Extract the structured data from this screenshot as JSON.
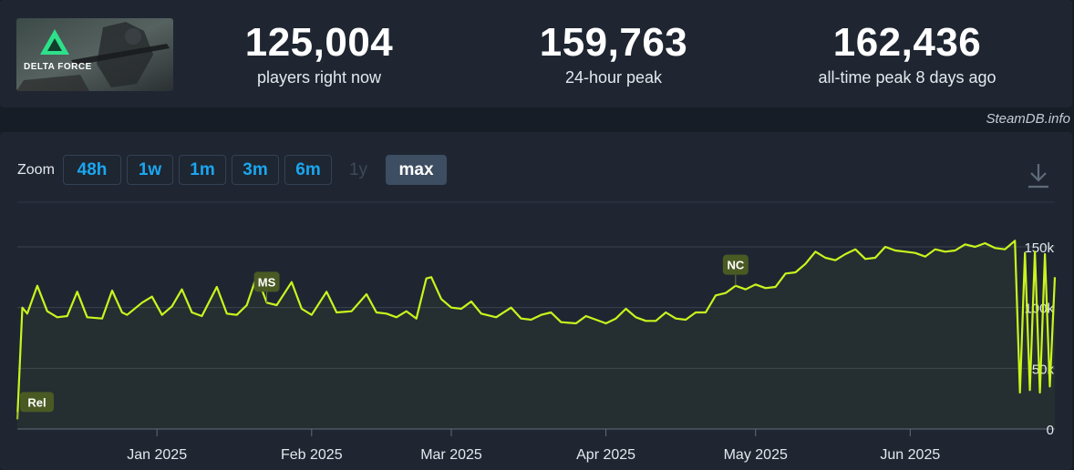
{
  "game": {
    "thumbnail_text": "DELTA FORCE",
    "thumbnail_icon": "delta-force-logo"
  },
  "stats": {
    "current": {
      "value": "125,004",
      "label": "players right now"
    },
    "peak24": {
      "value": "159,763",
      "label": "24-hour peak"
    },
    "alltime": {
      "value": "162,436",
      "label": "all-time peak 8 days ago"
    }
  },
  "credit": "SteamDB.info",
  "zoom": {
    "label": "Zoom",
    "buttons": [
      {
        "label": "48h",
        "state": "enabled"
      },
      {
        "label": "1w",
        "state": "enabled"
      },
      {
        "label": "1m",
        "state": "enabled"
      },
      {
        "label": "3m",
        "state": "enabled"
      },
      {
        "label": "6m",
        "state": "enabled"
      },
      {
        "label": "1y",
        "state": "disabled"
      },
      {
        "label": "max",
        "state": "active"
      }
    ]
  },
  "icons": {
    "download": "download-icon"
  },
  "colors": {
    "line": "#c8f51d",
    "annotation_bg": "#4a5a23",
    "active_zoom": "#3d4d62",
    "zoom_text": "#1ba6f0"
  },
  "chart_data": {
    "type": "line",
    "x_unit": "date",
    "xlim": [
      "2024-12-04",
      "2025-06-30"
    ],
    "ylim": [
      0,
      150000
    ],
    "y_ticks": [
      0,
      50000,
      100000,
      150000
    ],
    "y_tick_labels": [
      "0",
      "50k",
      "100k",
      "150k"
    ],
    "x_ticks": [
      "2025-01-01",
      "2025-02-01",
      "2025-03-01",
      "2025-04-01",
      "2025-05-01",
      "2025-06-01"
    ],
    "x_tick_labels": [
      "Jan 2025",
      "Feb 2025",
      "Mar 2025",
      "Apr 2025",
      "May 2025",
      "Jun 2025"
    ],
    "grid": true,
    "legend": "none",
    "series": [
      {
        "values": [
          [
            "2024-12-04",
            8000
          ],
          [
            "2024-12-05",
            100000
          ],
          [
            "2024-12-06",
            95000
          ],
          [
            "2024-12-08",
            118000
          ],
          [
            "2024-12-10",
            97000
          ],
          [
            "2024-12-12",
            92000
          ],
          [
            "2024-12-14",
            93000
          ],
          [
            "2024-12-16",
            113000
          ],
          [
            "2024-12-18",
            92000
          ],
          [
            "2024-12-21",
            91000
          ],
          [
            "2024-12-23",
            114000
          ],
          [
            "2024-12-25",
            96000
          ],
          [
            "2024-12-26",
            94000
          ],
          [
            "2024-12-29",
            104000
          ],
          [
            "2024-12-31",
            109000
          ],
          [
            "2025-01-02",
            94000
          ],
          [
            "2025-01-04",
            101000
          ],
          [
            "2025-01-06",
            115000
          ],
          [
            "2025-01-08",
            96000
          ],
          [
            "2025-01-10",
            93000
          ],
          [
            "2025-01-13",
            117000
          ],
          [
            "2025-01-15",
            95000
          ],
          [
            "2025-01-17",
            94000
          ],
          [
            "2025-01-19",
            102000
          ],
          [
            "2025-01-21",
            126000
          ],
          [
            "2025-01-23",
            104000
          ],
          [
            "2025-01-25",
            102000
          ],
          [
            "2025-01-28",
            121000
          ],
          [
            "2025-01-30",
            99000
          ],
          [
            "2025-02-01",
            94000
          ],
          [
            "2025-02-04",
            113000
          ],
          [
            "2025-02-06",
            96000
          ],
          [
            "2025-02-09",
            97000
          ],
          [
            "2025-02-12",
            111000
          ],
          [
            "2025-02-14",
            96000
          ],
          [
            "2025-02-16",
            95000
          ],
          [
            "2025-02-18",
            92000
          ],
          [
            "2025-02-20",
            97000
          ],
          [
            "2025-02-22",
            91000
          ],
          [
            "2025-02-24",
            124000
          ],
          [
            "2025-02-25",
            125000
          ],
          [
            "2025-02-27",
            107000
          ],
          [
            "2025-03-01",
            100000
          ],
          [
            "2025-03-03",
            99000
          ],
          [
            "2025-03-05",
            105000
          ],
          [
            "2025-03-07",
            95000
          ],
          [
            "2025-03-10",
            92000
          ],
          [
            "2025-03-13",
            100000
          ],
          [
            "2025-03-15",
            91000
          ],
          [
            "2025-03-17",
            90000
          ],
          [
            "2025-03-19",
            94000
          ],
          [
            "2025-03-21",
            96000
          ],
          [
            "2025-03-23",
            88000
          ],
          [
            "2025-03-26",
            87000
          ],
          [
            "2025-03-28",
            93000
          ],
          [
            "2025-03-30",
            90000
          ],
          [
            "2025-04-01",
            87000
          ],
          [
            "2025-04-03",
            91000
          ],
          [
            "2025-04-05",
            99000
          ],
          [
            "2025-04-07",
            92000
          ],
          [
            "2025-04-09",
            89000
          ],
          [
            "2025-04-11",
            89000
          ],
          [
            "2025-04-13",
            96000
          ],
          [
            "2025-04-15",
            91000
          ],
          [
            "2025-04-17",
            90000
          ],
          [
            "2025-04-19",
            96000
          ],
          [
            "2025-04-21",
            96000
          ],
          [
            "2025-04-23",
            110000
          ],
          [
            "2025-04-25",
            112000
          ],
          [
            "2025-04-27",
            118000
          ],
          [
            "2025-04-29",
            115000
          ],
          [
            "2025-05-01",
            119000
          ],
          [
            "2025-05-03",
            116000
          ],
          [
            "2025-05-05",
            117000
          ],
          [
            "2025-05-07",
            128000
          ],
          [
            "2025-05-09",
            129000
          ],
          [
            "2025-05-11",
            136000
          ],
          [
            "2025-05-13",
            146000
          ],
          [
            "2025-05-15",
            141000
          ],
          [
            "2025-05-17",
            139000
          ],
          [
            "2025-05-19",
            144000
          ],
          [
            "2025-05-21",
            148000
          ],
          [
            "2025-05-23",
            140000
          ],
          [
            "2025-05-25",
            141000
          ],
          [
            "2025-05-27",
            150000
          ],
          [
            "2025-05-29",
            147000
          ],
          [
            "2025-05-31",
            146000
          ],
          [
            "2025-06-02",
            145000
          ],
          [
            "2025-06-04",
            142000
          ],
          [
            "2025-06-06",
            148000
          ],
          [
            "2025-06-08",
            146000
          ],
          [
            "2025-06-10",
            147000
          ],
          [
            "2025-06-12",
            152000
          ],
          [
            "2025-06-14",
            150000
          ],
          [
            "2025-06-16",
            153000
          ],
          [
            "2025-06-18",
            149000
          ],
          [
            "2025-06-20",
            148000
          ],
          [
            "2025-06-22",
            155000
          ],
          [
            "2025-06-23",
            30000
          ],
          [
            "2025-06-24",
            145000
          ],
          [
            "2025-06-25",
            32000
          ],
          [
            "2025-06-26",
            146000
          ],
          [
            "2025-06-27",
            30000
          ],
          [
            "2025-06-28",
            144000
          ],
          [
            "2025-06-29",
            35000
          ],
          [
            "2025-06-30",
            125000
          ]
        ]
      }
    ],
    "annotations": [
      {
        "label": "Rel",
        "x": "2024-12-04"
      },
      {
        "label": "MS",
        "x": "2025-01-23"
      },
      {
        "label": "NC",
        "x": "2025-04-27"
      }
    ]
  }
}
